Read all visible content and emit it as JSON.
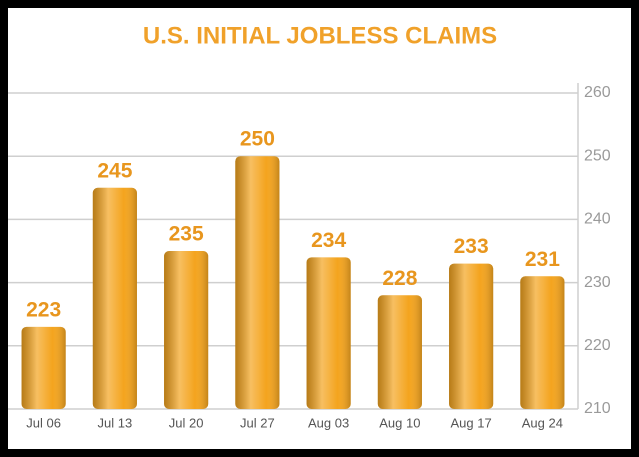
{
  "chart_data": {
    "type": "bar",
    "title": "U.S. INITIAL JOBLESS CLAIMS",
    "categories": [
      "Jul 06",
      "Jul 13",
      "Jul 20",
      "Jul 27",
      "Aug 03",
      "Aug 10",
      "Aug 17",
      "Aug 24"
    ],
    "values": [
      223,
      245,
      235,
      250,
      234,
      228,
      233,
      231
    ],
    "color": "#f4a41e",
    "ylim": [
      210,
      260
    ],
    "yticks": [
      210,
      220,
      230,
      240,
      250,
      260
    ],
    "grid": true
  }
}
